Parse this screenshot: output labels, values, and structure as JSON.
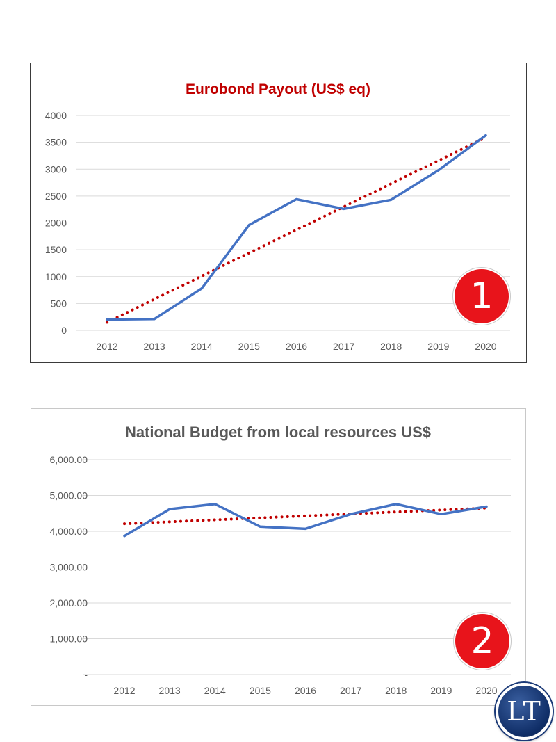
{
  "charts": [
    {
      "type": "line",
      "title": "Eurobond Payout (US$ eq)",
      "title_color": "#c00000",
      "x": [
        "2012",
        "2013",
        "2014",
        "2015",
        "2016",
        "2017",
        "2018",
        "2019",
        "2020"
      ],
      "series": [
        {
          "values": [
            200,
            210,
            780,
            1960,
            2440,
            2260,
            2430,
            2980,
            3630
          ],
          "color": "#4472c4"
        }
      ],
      "trendline": {
        "style": "dotted",
        "color": "#c00000",
        "from": 150,
        "to": 3590
      },
      "ylim": [
        0,
        4000
      ],
      "yticks": [
        "0",
        "500",
        "1000",
        "1500",
        "2000",
        "2500",
        "3000",
        "3500",
        "4000"
      ],
      "grid": true,
      "badge": "1"
    },
    {
      "type": "line",
      "title": "National Budget from local resources US$",
      "title_color": "#595959",
      "x": [
        "2012",
        "2013",
        "2014",
        "2015",
        "2016",
        "2017",
        "2018",
        "2019",
        "2020"
      ],
      "series": [
        {
          "values": [
            3870,
            4620,
            4760,
            4130,
            4070,
            4480,
            4760,
            4480,
            4690
          ],
          "color": "#4472c4"
        }
      ],
      "trendline": {
        "style": "dotted",
        "color": "#c00000",
        "from": 4210,
        "to": 4650
      },
      "ylim": [
        0,
        6000
      ],
      "yticks": [
        "-",
        "1,000.00",
        "2,000.00",
        "3,000.00",
        "4,000.00",
        "5,000.00",
        "6,000.00"
      ],
      "grid": true,
      "badge": "2"
    }
  ],
  "logo": {
    "text": "LT"
  }
}
